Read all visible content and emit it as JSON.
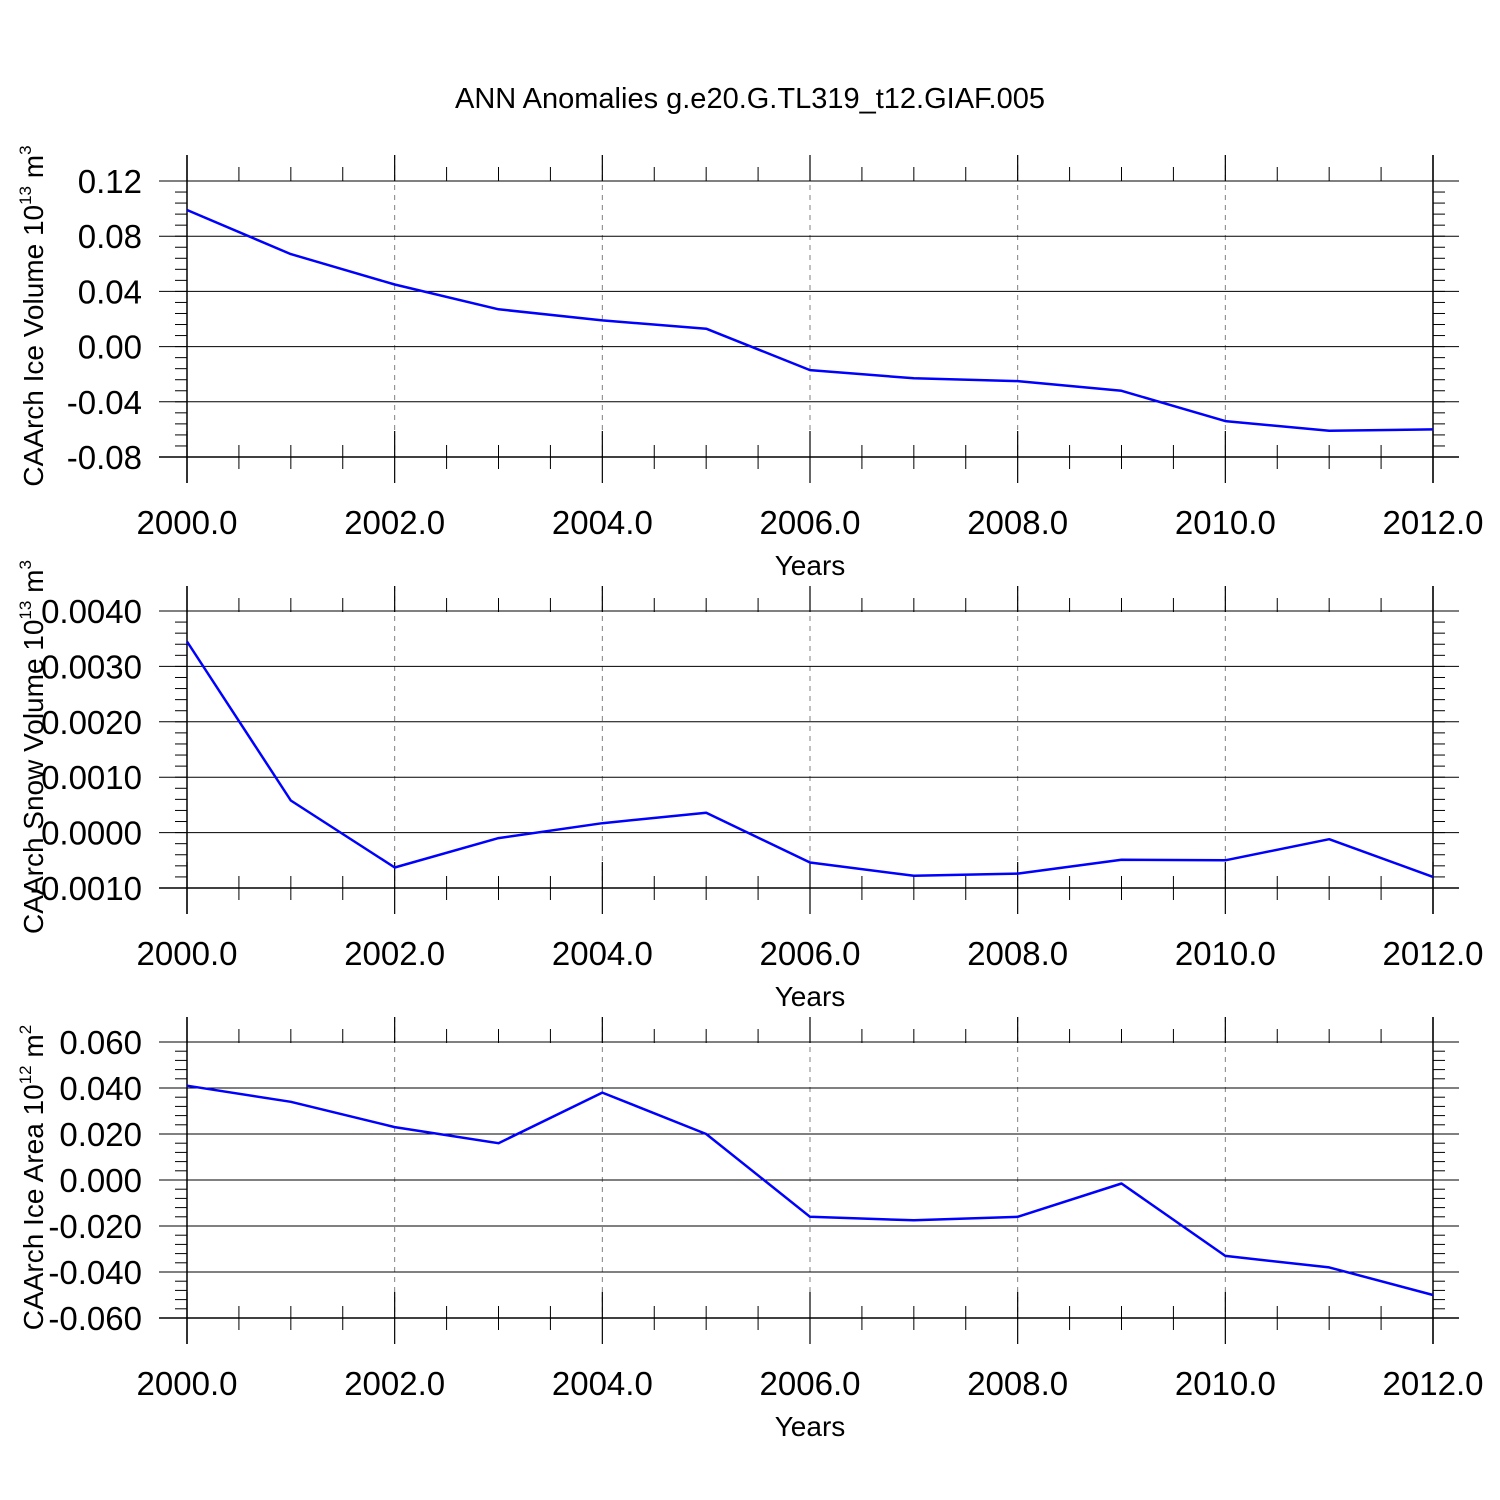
{
  "figure": {
    "title": "ANN Anomalies g.e20.G.TL319_t12.GIAF.005"
  },
  "style": {
    "line_color": "#0000ff",
    "axis_color": "#000000",
    "grid_color": "#808080"
  },
  "chart_data": [
    {
      "type": "line",
      "title": "",
      "xlabel": "Years",
      "ylabel": {
        "prefix": "CAArch Ice Volume 10",
        "exponent": "13",
        "unit": " m",
        "unit_exponent": "3"
      },
      "x": [
        2000,
        2001,
        2002,
        2003,
        2004,
        2005,
        2006,
        2007,
        2008,
        2009,
        2010,
        2011,
        2012
      ],
      "series": [
        {
          "values": [
            0.099,
            0.067,
            0.045,
            0.027,
            0.019,
            0.013,
            -0.017,
            -0.023,
            -0.025,
            -0.032,
            -0.054,
            -0.061,
            -0.06
          ]
        }
      ],
      "xlim": [
        2000,
        2012
      ],
      "ylim": [
        -0.09,
        0.14
      ],
      "x_ticks": [
        2000,
        2002,
        2004,
        2006,
        2008,
        2010,
        2012
      ],
      "x_tick_labels": [
        "2000.0",
        "2002.0",
        "2004.0",
        "2006.0",
        "2008.0",
        "2010.0",
        "2012.0"
      ],
      "y_ticks": [
        0.12,
        0.08,
        0.04,
        0.0,
        -0.04,
        -0.08
      ],
      "y_tick_labels": [
        "0.12",
        "0.08",
        "0.04",
        "0.00",
        "-0.04",
        "-0.08"
      ],
      "y_minor_step": 0.008,
      "grid": "x-dashed"
    },
    {
      "type": "line",
      "title": "",
      "xlabel": "Years",
      "ylabel": {
        "prefix": "CAArch Snow Volume 10",
        "exponent": "13",
        "unit": " m",
        "unit_exponent": "3"
      },
      "x": [
        2000,
        2001,
        2002,
        2003,
        2004,
        2005,
        2006,
        2007,
        2008,
        2009,
        2010,
        2011,
        2012
      ],
      "series": [
        {
          "values": [
            0.00345,
            0.00058,
            -0.00063,
            -0.0001,
            0.00017,
            0.00036,
            -0.00054,
            -0.00078,
            -0.00074,
            -0.00049,
            -0.0005,
            -0.00012,
            -0.0008
          ]
        }
      ],
      "xlim": [
        2000,
        2012
      ],
      "ylim": [
        -0.001,
        0.004
      ],
      "x_ticks": [
        2000,
        2002,
        2004,
        2006,
        2008,
        2010,
        2012
      ],
      "x_tick_labels": [
        "2000.0",
        "2002.0",
        "2004.0",
        "2006.0",
        "2008.0",
        "2010.0",
        "2012.0"
      ],
      "y_ticks": [
        0.004,
        0.003,
        0.002,
        0.001,
        0.0,
        -0.001
      ],
      "y_tick_labels": [
        "0.0040",
        "0.0030",
        "0.0020",
        "0.0010",
        "0.0000",
        "-0.0010"
      ],
      "y_minor_step": 0.0002,
      "grid": "x-dashed"
    },
    {
      "type": "line",
      "title": "",
      "xlabel": "Years",
      "ylabel": {
        "prefix": "CAArch Ice Area 10",
        "exponent": "12",
        "unit": " m",
        "unit_exponent": "2"
      },
      "x": [
        2000,
        2001,
        2002,
        2003,
        2004,
        2005,
        2006,
        2007,
        2008,
        2009,
        2010,
        2011,
        2012
      ],
      "series": [
        {
          "values": [
            0.041,
            0.034,
            0.023,
            0.016,
            0.038,
            0.02,
            -0.016,
            -0.0175,
            -0.016,
            -0.0015,
            -0.033,
            -0.038,
            -0.05
          ]
        }
      ],
      "xlim": [
        2000,
        2012
      ],
      "ylim": [
        -0.06,
        0.06
      ],
      "x_ticks": [
        2000,
        2002,
        2004,
        2006,
        2008,
        2010,
        2012
      ],
      "x_tick_labels": [
        "2000.0",
        "2002.0",
        "2004.0",
        "2006.0",
        "2008.0",
        "2010.0",
        "2012.0"
      ],
      "y_ticks": [
        0.06,
        0.04,
        0.02,
        0.0,
        -0.02,
        -0.04,
        -0.06
      ],
      "y_tick_labels": [
        "0.060",
        "0.040",
        "0.020",
        "0.000",
        "-0.020",
        "-0.040",
        "-0.060"
      ],
      "y_minor_step": 0.004,
      "grid": "x-dashed"
    }
  ]
}
